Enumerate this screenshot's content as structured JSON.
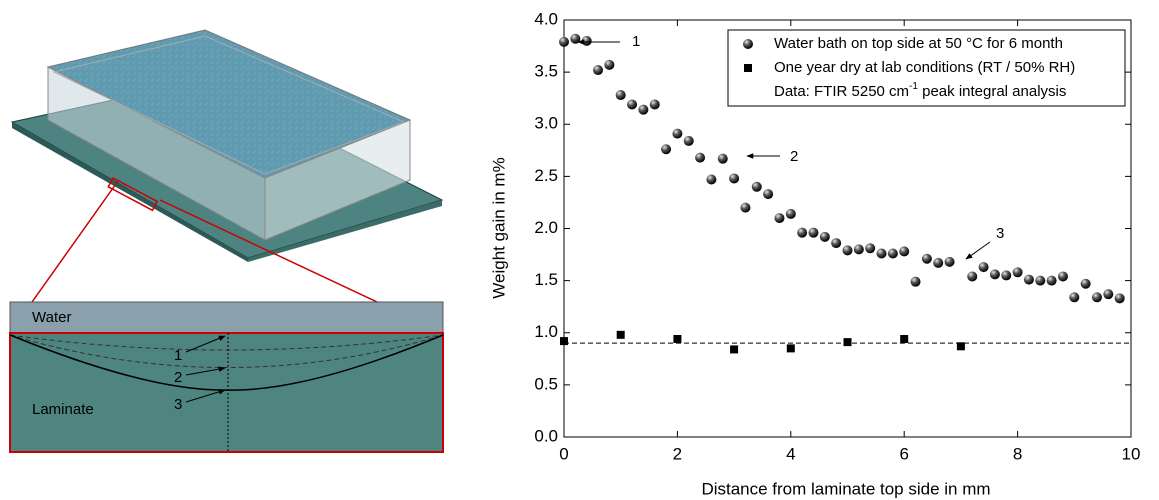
{
  "chart_data": {
    "type": "scatter",
    "xlabel": "Distance from laminate top side in mm",
    "ylabel": "Weight gain in m%",
    "xlim": [
      0,
      10
    ],
    "xticks": [
      0,
      2,
      4,
      6,
      8,
      10
    ],
    "ylim": [
      0,
      4
    ],
    "yticks": [
      {
        "value": 0,
        "label": "0.0"
      },
      0.5,
      {
        "value": 1,
        "label": "1.0"
      },
      1.5,
      {
        "value": 2,
        "label": "2.0"
      },
      2.5,
      {
        "value": 3,
        "label": "3.0"
      },
      3.5,
      {
        "value": 4,
        "label": "4.0"
      }
    ],
    "series": [
      {
        "name": "Water bath on top side at 50 °C for 6 month",
        "color": "#000000",
        "marker": "sphere",
        "x": [
          0,
          0.2,
          0.4,
          0.6,
          0.8,
          1.0,
          1.2,
          1.4,
          1.6,
          1.8,
          2.0,
          2.2,
          2.4,
          2.6,
          2.8,
          3.0,
          3.2,
          3.4,
          3.6,
          3.8,
          4.0,
          4.2,
          4.4,
          4.6,
          4.8,
          5.0,
          5.2,
          5.4,
          5.6,
          5.8,
          6.0,
          6.2,
          6.4,
          6.6,
          6.8,
          7.2,
          7.4,
          7.6,
          7.8,
          8.0,
          8.2,
          8.4,
          8.6,
          8.8,
          9.0,
          9.2,
          9.4,
          9.6,
          9.8
        ],
        "values": [
          3.79,
          3.82,
          3.8,
          3.52,
          3.57,
          3.28,
          3.19,
          3.14,
          3.19,
          2.76,
          2.91,
          2.84,
          2.68,
          2.47,
          2.67,
          2.48,
          2.2,
          2.4,
          2.33,
          2.1,
          2.14,
          1.96,
          1.96,
          1.92,
          1.86,
          1.79,
          1.8,
          1.81,
          1.76,
          1.76,
          1.78,
          1.49,
          1.71,
          1.67,
          1.68,
          1.54,
          1.63,
          1.56,
          1.55,
          1.58,
          1.51,
          1.5,
          1.5,
          1.54,
          1.34,
          1.47,
          1.34,
          1.37,
          1.33
        ]
      },
      {
        "name": "One year dry at lab conditions (RT / 50% RH)",
        "color": "#000000",
        "marker": "square",
        "x": [
          0,
          1,
          2,
          3,
          4,
          5,
          6,
          7
        ],
        "values": [
          0.92,
          0.98,
          0.94,
          0.84,
          0.85,
          0.91,
          0.94,
          0.87
        ]
      }
    ],
    "reference_line": 0.9,
    "legend_note": {
      "text": "Data: FTIR 5250 cm",
      "sup": "-1",
      "tail": " peak integral analysis"
    },
    "annotations": [
      "1",
      "2",
      "3"
    ],
    "legend": "upper right"
  },
  "diagram": {
    "labels": {
      "water": "Water",
      "laminate": "Laminate",
      "marks": [
        "1",
        "2",
        "3"
      ]
    }
  }
}
